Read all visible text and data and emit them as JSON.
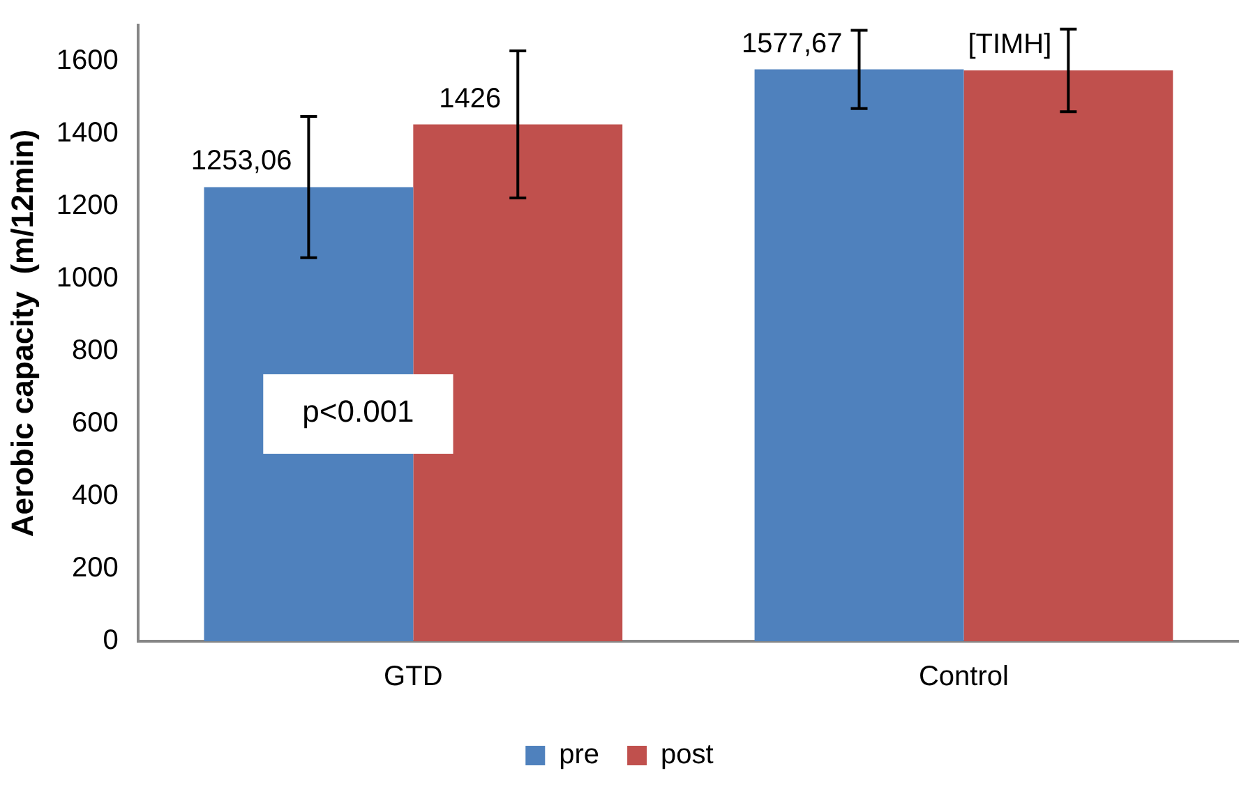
{
  "chart_data": {
    "type": "bar",
    "ylabel": "Aerobic capacity  (m/12min)",
    "categories": [
      "GTD",
      "Control"
    ],
    "series": [
      {
        "name": "pre",
        "color": "#4f81bd",
        "values": [
          1253.06,
          1577.67
        ],
        "errors": [
          195,
          108
        ],
        "value_labels": [
          "1253,06",
          "1577,67"
        ]
      },
      {
        "name": "post",
        "color": "#c0504d",
        "values": [
          1426,
          1575
        ],
        "errors": [
          203,
          114
        ],
        "value_labels": [
          "1426",
          "[TIMH]"
        ]
      }
    ],
    "ylim": [
      0,
      1700
    ],
    "yticks": [
      0,
      200,
      400,
      600,
      800,
      1000,
      1200,
      1400,
      1600
    ],
    "grid": false,
    "legend": "bottom",
    "annotations": [
      "p<0.001"
    ]
  }
}
